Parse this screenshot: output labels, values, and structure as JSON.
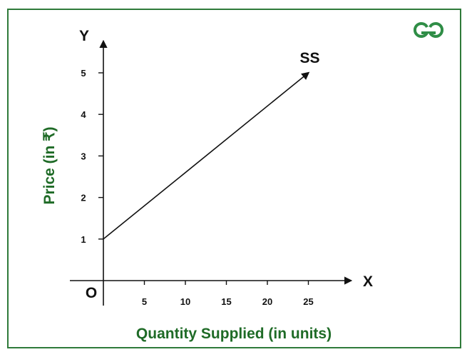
{
  "brand": {
    "logo_icon": "gfg-logo-icon",
    "color": "#2f8d46"
  },
  "colors": {
    "border": "#2f7a3a",
    "axis_title": "#1f6b27",
    "ink": "#111111"
  },
  "chart_data": {
    "type": "line",
    "title": "",
    "xlabel": "Quantity Supplied (in units)",
    "ylabel": "Price (in ₹)",
    "x_axis_letter": "X",
    "y_axis_letter": "Y",
    "origin_label": "O",
    "x_ticks": [
      5,
      10,
      15,
      20,
      25
    ],
    "y_ticks": [
      1,
      2,
      3,
      4,
      5
    ],
    "xlim": [
      0,
      30
    ],
    "ylim": [
      0,
      6
    ],
    "grid": false,
    "series": [
      {
        "name": "SS",
        "x": [
          0,
          25
        ],
        "y": [
          1,
          5
        ],
        "arrow_end": true
      }
    ]
  }
}
